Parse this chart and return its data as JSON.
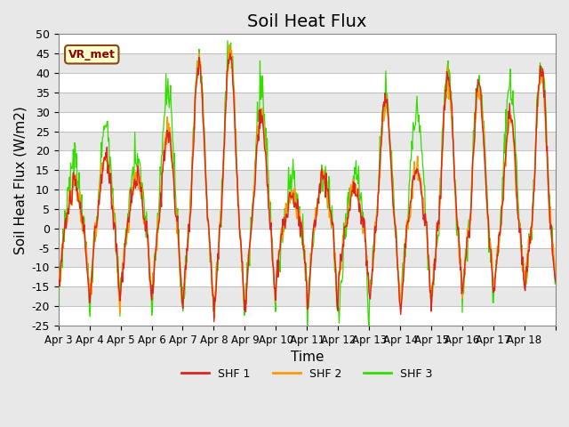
{
  "title": "Soil Heat Flux",
  "ylabel": "Soil Heat Flux (W/m2)",
  "xlabel": "Time",
  "ylim": [
    -25,
    50
  ],
  "yticks": [
    -25,
    -20,
    -15,
    -10,
    -5,
    0,
    5,
    10,
    15,
    20,
    25,
    30,
    35,
    40,
    45,
    50
  ],
  "xtick_labels": [
    "Apr 3",
    "Apr 4",
    "Apr 5",
    "Apr 6",
    "Apr 7",
    "Apr 8",
    "Apr 9",
    "Apr 10",
    "Apr 11",
    "Apr 12",
    "Apr 13",
    "Apr 14",
    "Apr 15",
    "Apr 16",
    "Apr 17",
    "Apr 18"
  ],
  "legend_site": "VR_met",
  "line_colors": [
    "#dd2222",
    "#ff9900",
    "#33dd00"
  ],
  "line_labels": [
    "SHF 1",
    "SHF 2",
    "SHF 3"
  ],
  "bg_color": "#e8e8e8",
  "plot_bg_color": "#e8e8e8",
  "title_fontsize": 14,
  "axis_fontsize": 11,
  "tick_fontsize": 9
}
